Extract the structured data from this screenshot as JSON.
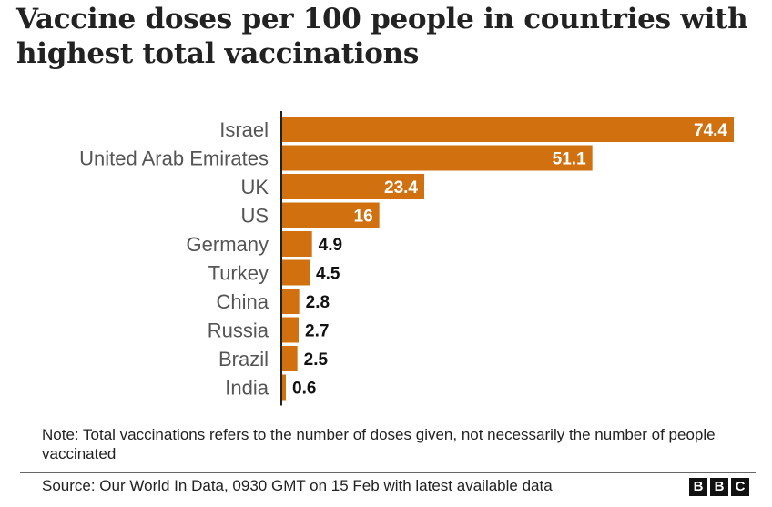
{
  "chart_data": {
    "type": "bar",
    "orientation": "horizontal",
    "title": "Vaccine doses per 100 people in countries with highest total vaccinations",
    "categories": [
      "Israel",
      "United Arab Emirates",
      "UK",
      "US",
      "Germany",
      "Turkey",
      "China",
      "Russia",
      "Brazil",
      "India"
    ],
    "values": [
      74.4,
      51.1,
      23.4,
      16,
      4.9,
      4.5,
      2.8,
      2.7,
      2.5,
      0.6
    ],
    "value_labels": [
      "74.4",
      "51.1",
      "23.4",
      "16",
      "4.9",
      "4.5",
      "2.8",
      "2.7",
      "2.5",
      "0.6"
    ],
    "xlabel": "",
    "ylabel": "",
    "xlim": [
      0,
      74.4
    ],
    "grid": false,
    "bar_color": "#d1700e"
  },
  "note": "Note: Total vaccinations refers to the number of doses given, not necessarily the number of people vaccinated",
  "source": "Source: Our World In Data, 0930 GMT on 15 Feb with latest available data",
  "logo": [
    "B",
    "B",
    "C"
  ]
}
